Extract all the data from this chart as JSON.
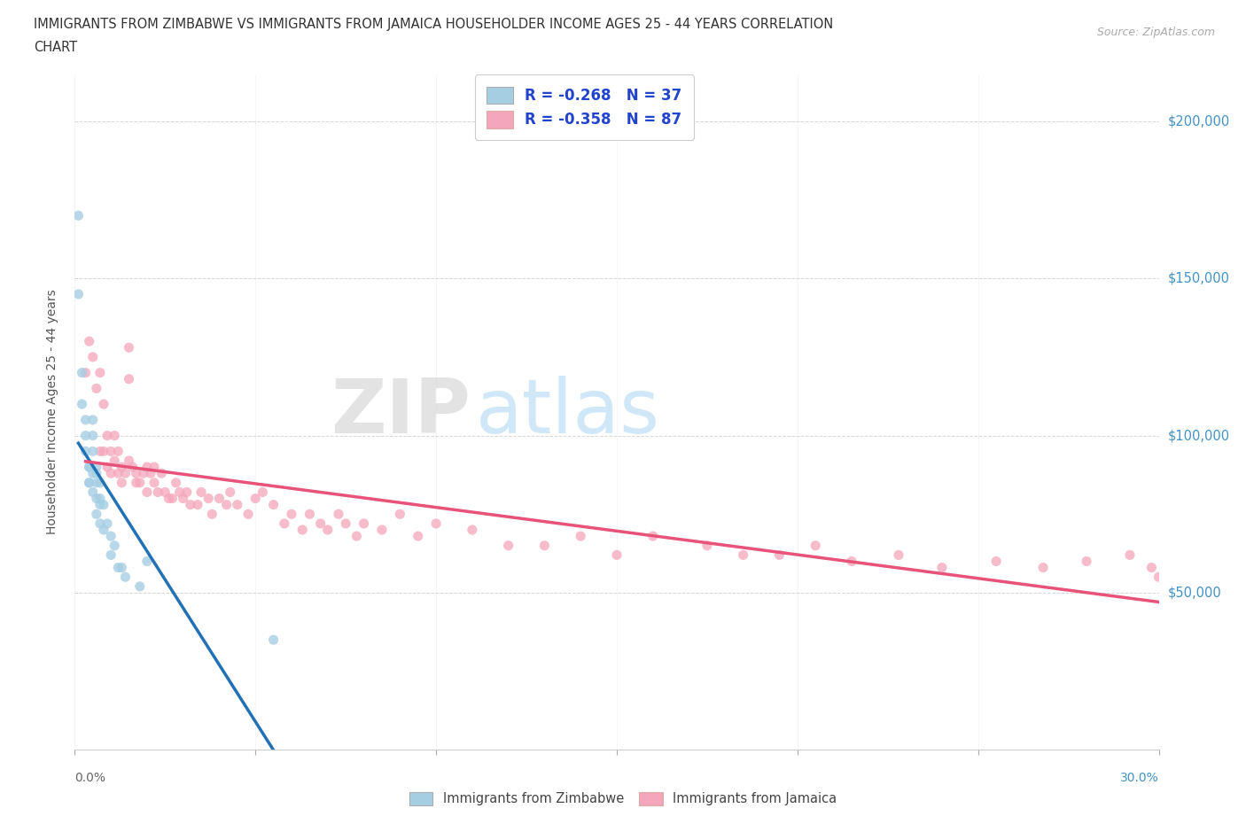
{
  "title_line1": "IMMIGRANTS FROM ZIMBABWE VS IMMIGRANTS FROM JAMAICA HOUSEHOLDER INCOME AGES 25 - 44 YEARS CORRELATION",
  "title_line2": "CHART",
  "source": "Source: ZipAtlas.com",
  "ylabel": "Householder Income Ages 25 - 44 years",
  "watermark_zip": "ZIP",
  "watermark_atlas": "atlas",
  "legend_zim": "R = -0.268   N = 37",
  "legend_jam": "R = -0.358   N = 87",
  "legend_label_zim": "Immigrants from Zimbabwe",
  "legend_label_jam": "Immigrants from Jamaica",
  "color_zim": "#a6cee3",
  "color_jam": "#f4a6bc",
  "color_zim_line": "#2171b5",
  "color_jam_line": "#e8537a",
  "color_dashed": "#9ecae1",
  "xlim": [
    0.0,
    0.3
  ],
  "ylim": [
    0,
    215000
  ],
  "yticks": [
    50000,
    100000,
    150000,
    200000
  ],
  "ytick_labels": [
    "$50,000",
    "$100,000",
    "$150,000",
    "$200,000"
  ],
  "zim_x": [
    0.001,
    0.001,
    0.002,
    0.002,
    0.003,
    0.003,
    0.003,
    0.004,
    0.004,
    0.004,
    0.004,
    0.005,
    0.005,
    0.005,
    0.005,
    0.005,
    0.006,
    0.006,
    0.006,
    0.006,
    0.006,
    0.007,
    0.007,
    0.007,
    0.007,
    0.008,
    0.008,
    0.009,
    0.01,
    0.01,
    0.011,
    0.012,
    0.013,
    0.014,
    0.018,
    0.02,
    0.055
  ],
  "zim_y": [
    170000,
    145000,
    120000,
    110000,
    105000,
    100000,
    95000,
    90000,
    90000,
    85000,
    85000,
    105000,
    100000,
    95000,
    88000,
    82000,
    90000,
    88000,
    85000,
    80000,
    75000,
    85000,
    80000,
    78000,
    72000,
    78000,
    70000,
    72000,
    68000,
    62000,
    65000,
    58000,
    58000,
    55000,
    52000,
    60000,
    35000
  ],
  "jam_x": [
    0.003,
    0.004,
    0.005,
    0.006,
    0.007,
    0.007,
    0.008,
    0.008,
    0.009,
    0.009,
    0.01,
    0.01,
    0.011,
    0.011,
    0.012,
    0.012,
    0.013,
    0.013,
    0.014,
    0.015,
    0.015,
    0.015,
    0.016,
    0.017,
    0.017,
    0.018,
    0.019,
    0.02,
    0.02,
    0.021,
    0.022,
    0.022,
    0.023,
    0.024,
    0.025,
    0.026,
    0.027,
    0.028,
    0.029,
    0.03,
    0.031,
    0.032,
    0.034,
    0.035,
    0.037,
    0.038,
    0.04,
    0.042,
    0.043,
    0.045,
    0.048,
    0.05,
    0.052,
    0.055,
    0.058,
    0.06,
    0.063,
    0.065,
    0.068,
    0.07,
    0.073,
    0.075,
    0.078,
    0.08,
    0.085,
    0.09,
    0.095,
    0.1,
    0.11,
    0.12,
    0.13,
    0.14,
    0.15,
    0.16,
    0.175,
    0.185,
    0.195,
    0.205,
    0.215,
    0.228,
    0.24,
    0.255,
    0.268,
    0.28,
    0.292,
    0.298,
    0.3
  ],
  "jam_y": [
    120000,
    130000,
    125000,
    115000,
    120000,
    95000,
    110000,
    95000,
    100000,
    90000,
    95000,
    88000,
    100000,
    92000,
    95000,
    88000,
    85000,
    90000,
    88000,
    92000,
    128000,
    118000,
    90000,
    88000,
    85000,
    85000,
    88000,
    82000,
    90000,
    88000,
    85000,
    90000,
    82000,
    88000,
    82000,
    80000,
    80000,
    85000,
    82000,
    80000,
    82000,
    78000,
    78000,
    82000,
    80000,
    75000,
    80000,
    78000,
    82000,
    78000,
    75000,
    80000,
    82000,
    78000,
    72000,
    75000,
    70000,
    75000,
    72000,
    70000,
    75000,
    72000,
    68000,
    72000,
    70000,
    75000,
    68000,
    72000,
    70000,
    65000,
    65000,
    68000,
    62000,
    68000,
    65000,
    62000,
    62000,
    65000,
    60000,
    62000,
    58000,
    60000,
    58000,
    60000,
    62000,
    58000,
    55000
  ]
}
